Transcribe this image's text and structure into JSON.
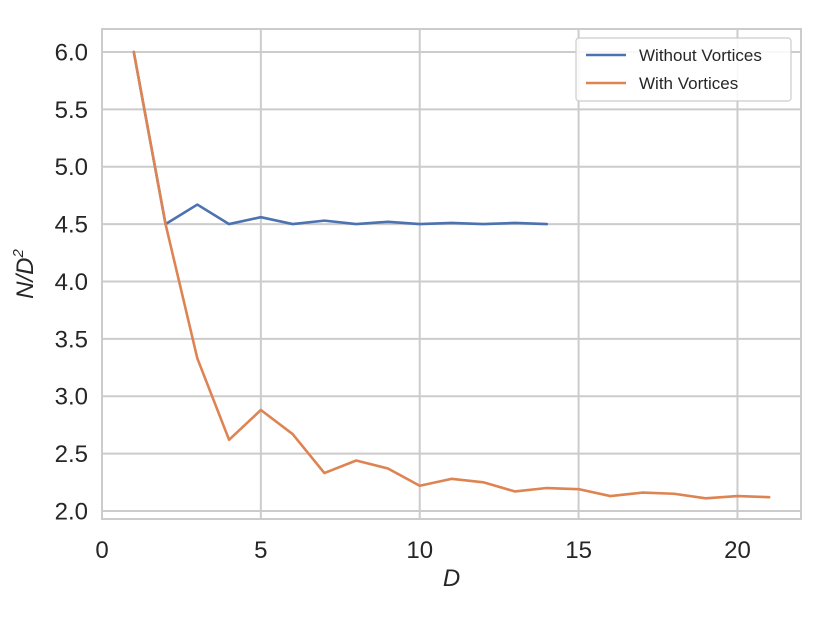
{
  "chart_data": {
    "type": "line",
    "title": "",
    "xlabel": "D",
    "ylabel_base": "N/D",
    "ylabel_sup": "2",
    "xlim": [
      0,
      22
    ],
    "ylim": [
      1.93,
      6.2
    ],
    "xticks": [
      0,
      5,
      10,
      15,
      20
    ],
    "yticks": [
      2.0,
      2.5,
      3.0,
      3.5,
      4.0,
      4.5,
      5.0,
      5.5,
      6.0
    ],
    "grid": true,
    "legend_position": "top-right",
    "series": [
      {
        "name": "Without Vortices",
        "color": "#4c72b0",
        "x": [
          1,
          2,
          3,
          4,
          5,
          6,
          7,
          8,
          9,
          10,
          11,
          12,
          13,
          14
        ],
        "values": [
          6.0,
          4.5,
          4.67,
          4.5,
          4.56,
          4.5,
          4.53,
          4.5,
          4.52,
          4.5,
          4.51,
          4.5,
          4.51,
          4.5
        ]
      },
      {
        "name": "With Vortices",
        "color": "#dd8452",
        "x": [
          1,
          2,
          3,
          4,
          5,
          6,
          7,
          8,
          9,
          10,
          11,
          12,
          13,
          14,
          15,
          16,
          17,
          18,
          19,
          20,
          21
        ],
        "values": [
          6.0,
          4.5,
          3.33,
          2.62,
          2.88,
          2.67,
          2.33,
          2.44,
          2.37,
          2.22,
          2.28,
          2.25,
          2.17,
          2.2,
          2.19,
          2.13,
          2.16,
          2.15,
          2.11,
          2.13,
          2.12
        ]
      }
    ]
  }
}
